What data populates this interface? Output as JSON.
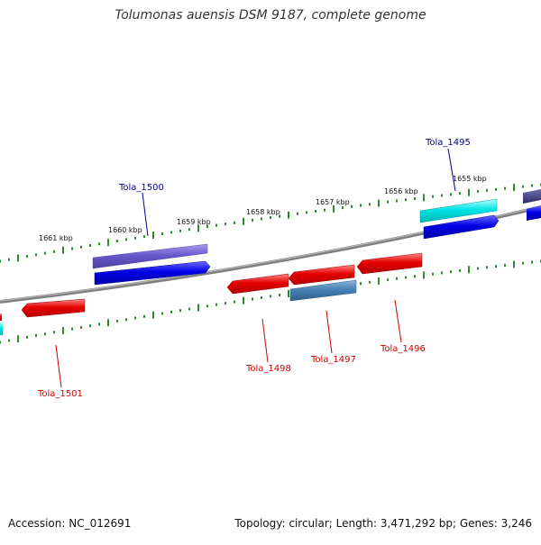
{
  "title": "Tolumonas auensis DSM 9187, complete genome",
  "footer": {
    "accession": "Accession: NC_012691",
    "summary": "Topology: circular; Length: 3,471,292 bp; Genes: 3,246"
  },
  "ticks": [
    "1661 kbp",
    "1660 kbp",
    "1659 kbp",
    "1658 kbp",
    "1657 kbp",
    "1656 kbp",
    "1655 kbp"
  ],
  "gene_labels": [
    {
      "text": "Tola_1495",
      "color": "#00008b"
    },
    {
      "text": "Tola_1500",
      "color": "#00008b"
    },
    {
      "text": "Tola_1498",
      "color": "#cc0000"
    },
    {
      "text": "Tola_1497",
      "color": "#cc0000"
    },
    {
      "text": "Tola_1496",
      "color": "#cc0000"
    },
    {
      "text": "Tola_1501",
      "color": "#cc0000"
    }
  ],
  "colors": {
    "backbone": "#808080",
    "tick": "#2e8b2e",
    "red_gene": "#e60000",
    "blue_gene": "#0000e6",
    "purple_gene": "#6a5acd",
    "cyan_gene": "#00e5e5",
    "steel_gene": "#4682b4"
  }
}
